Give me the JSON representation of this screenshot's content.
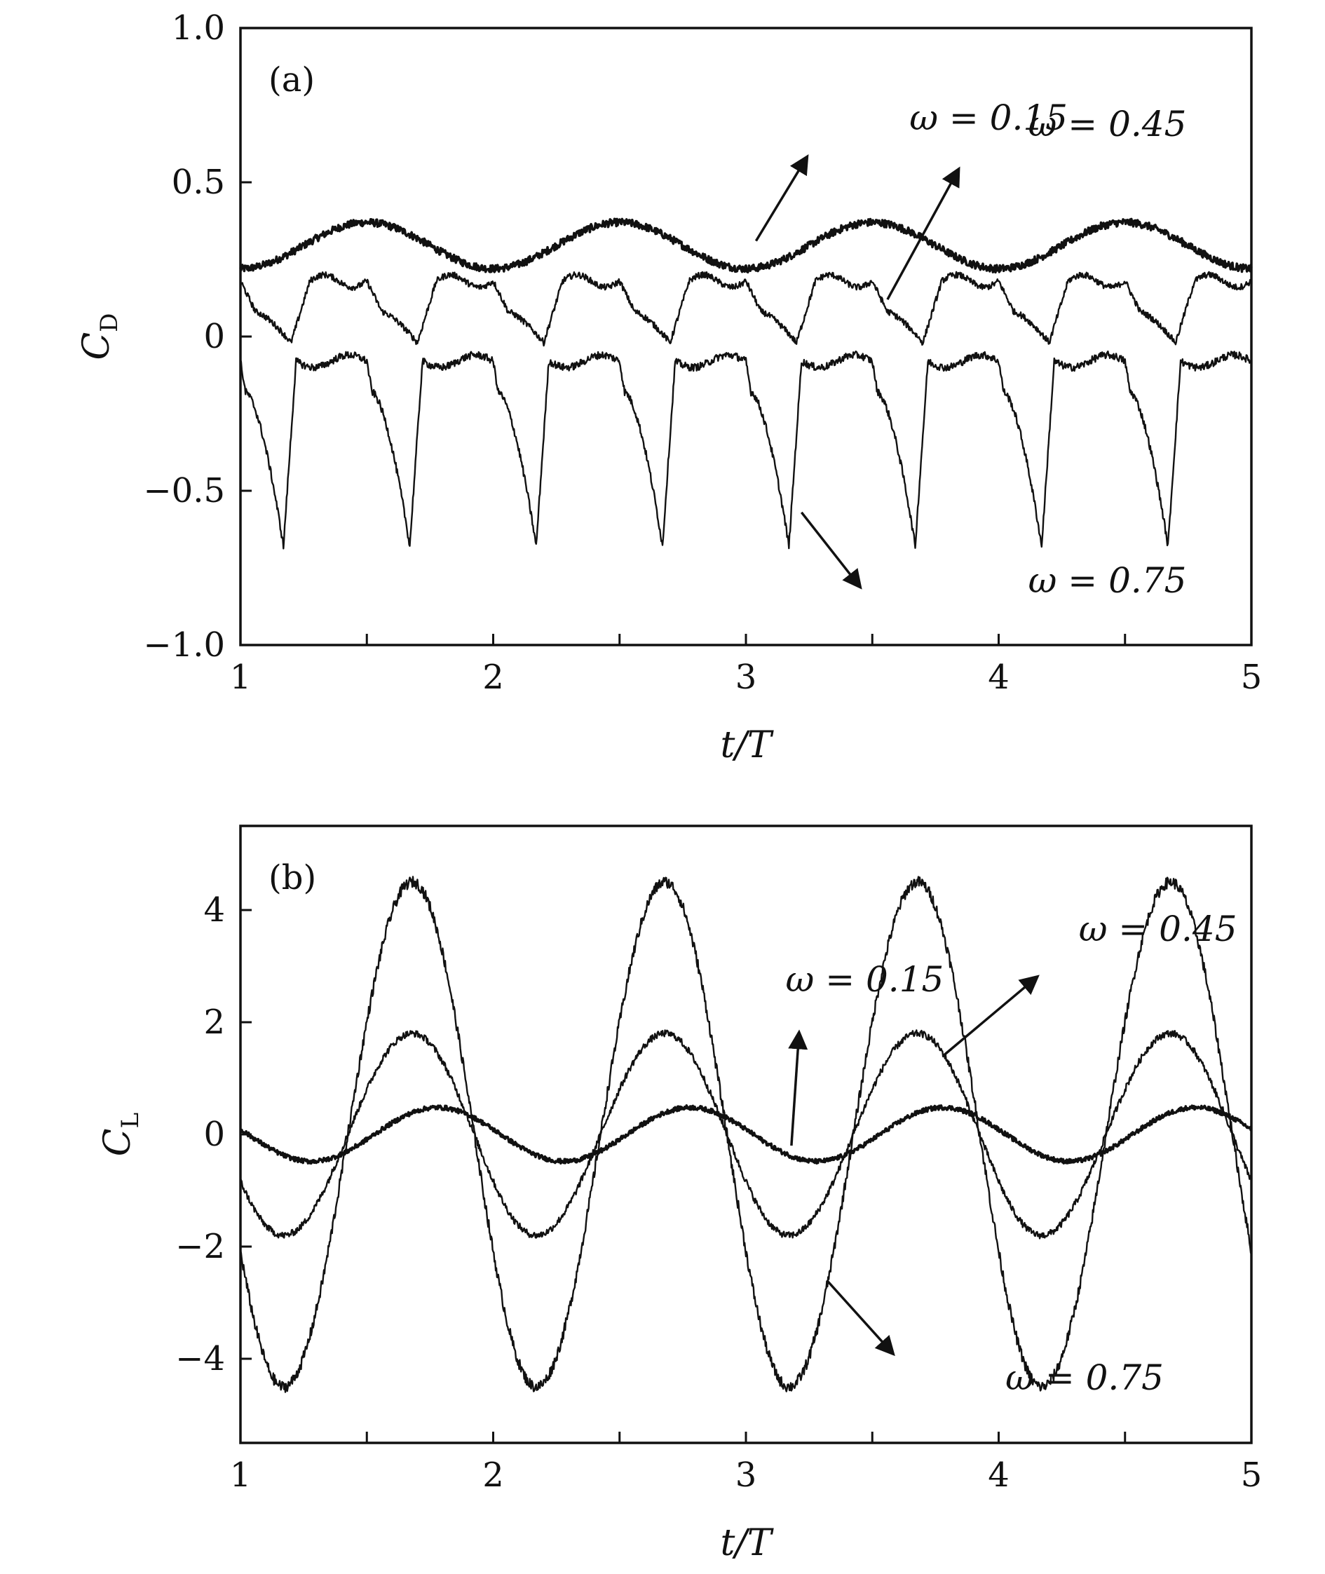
{
  "chart_data": [
    {
      "type": "line",
      "panel_label": "(a)",
      "xlabel": "t/T",
      "ylabel": "C",
      "ylabel_subscript": "D",
      "xlim": [
        1,
        5
      ],
      "ylim": [
        -1.0,
        1.0
      ],
      "xticks": [
        1,
        1.5,
        2,
        2.5,
        3,
        3.5,
        4,
        4.5,
        5
      ],
      "xtick_labels": [
        "1",
        "",
        "2",
        "",
        "3",
        "",
        "4",
        "",
        "5"
      ],
      "yticks": [
        -1.0,
        -0.5,
        0,
        0.5,
        1.0
      ],
      "ytick_labels": [
        "−1.0",
        "−0.5",
        "0",
        "0.5",
        "1.0"
      ],
      "grid": false,
      "line_color": "#111111",
      "series": [
        {
          "label": "ω = 0.15",
          "mean": 0.295,
          "amp": 0.075,
          "shape": "sine",
          "phase": 0.25,
          "noise": 0.012,
          "t_period": 1.0
        },
        {
          "label": "ω = 0.45",
          "mean": 0.09,
          "amp": 0.12,
          "shape": "drag45",
          "phase": 0.0,
          "noise": 0.01,
          "t_period": 1.0
        },
        {
          "label": "ω = 0.75",
          "mean": -0.36,
          "amp": 0.31,
          "shape": "drag75",
          "phase": 0.0,
          "noise": 0.012,
          "t_period": 1.0
        }
      ],
      "annotations": [
        {
          "text": "ω = 0.15",
          "tail": [
            3.04,
            0.31
          ],
          "head": [
            3.24,
            0.58
          ],
          "text_at": [
            3.96,
            0.67
          ]
        },
        {
          "text": "ω = 0.45",
          "tail": [
            3.56,
            0.12
          ],
          "head": [
            3.84,
            0.54
          ],
          "text_at": [
            4.43,
            0.65
          ]
        },
        {
          "text": "ω = 0.75",
          "tail": [
            3.22,
            -0.57
          ],
          "head": [
            3.45,
            -0.81
          ],
          "text_at": [
            4.43,
            -0.83
          ]
        }
      ]
    },
    {
      "type": "line",
      "panel_label": "(b)",
      "xlabel": "t/T",
      "ylabel": "C",
      "ylabel_subscript": "L",
      "xlim": [
        1,
        5
      ],
      "ylim": [
        -5.5,
        5.5
      ],
      "xticks": [
        1,
        1.5,
        2,
        2.5,
        3,
        3.5,
        4,
        4.5,
        5
      ],
      "xtick_labels": [
        "1",
        "",
        "2",
        "",
        "3",
        "",
        "4",
        "",
        "5"
      ],
      "yticks": [
        -4,
        -2,
        0,
        2,
        4
      ],
      "ytick_labels": [
        "−4",
        "−2",
        "0",
        "2",
        "4"
      ],
      "grid": false,
      "line_color": "#111111",
      "series": [
        {
          "label": "ω = 0.15",
          "amp": 0.48,
          "shape": "sine",
          "phase": 0.0,
          "noise": 0.04,
          "peak_t": 0.78
        },
        {
          "label": "ω = 0.45",
          "amp": 1.8,
          "shape": "skew",
          "phase": 0.0,
          "noise": 0.06,
          "peak_t": 0.72
        },
        {
          "label": "ω = 0.75",
          "amp": 4.5,
          "shape": "skew",
          "phase": 0.0,
          "noise": 0.1,
          "peak_t": 0.68
        }
      ],
      "annotations": [
        {
          "text": "ω = 0.15",
          "tail": [
            3.18,
            -0.2
          ],
          "head": [
            3.21,
            1.8
          ],
          "text_at": [
            3.47,
            2.55
          ]
        },
        {
          "text": "ω = 0.45",
          "tail": [
            3.78,
            1.4
          ],
          "head": [
            4.15,
            2.8
          ],
          "text_at": [
            4.63,
            3.45
          ]
        },
        {
          "text": "ω = 0.75",
          "tail": [
            3.32,
            -2.6
          ],
          "head": [
            3.58,
            -3.9
          ],
          "text_at": [
            4.34,
            -4.55
          ]
        }
      ]
    }
  ]
}
